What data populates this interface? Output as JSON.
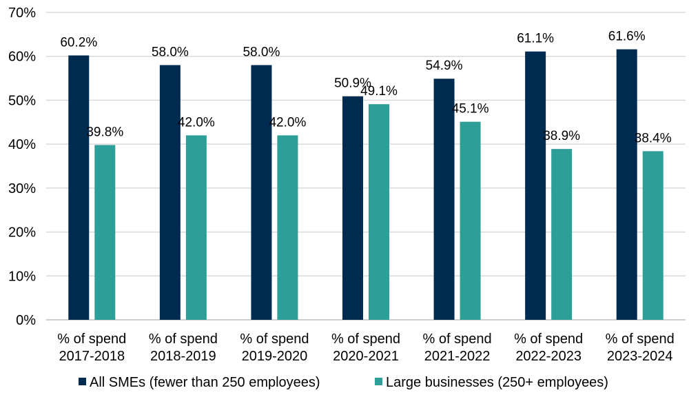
{
  "chart_data": {
    "type": "bar",
    "title": "",
    "xlabel": "",
    "ylabel": "",
    "ylim": [
      0,
      70
    ],
    "yticks": [
      0,
      10,
      20,
      30,
      40,
      50,
      60,
      70
    ],
    "ytick_labels": [
      "0%",
      "10%",
      "20%",
      "30%",
      "40%",
      "50%",
      "60%",
      "70%"
    ],
    "grid": true,
    "legend_position": "bottom",
    "categories": [
      [
        "% of spend",
        "2017-2018"
      ],
      [
        "% of spend",
        "2018-2019"
      ],
      [
        "% of spend",
        "2019-2020"
      ],
      [
        "% of spend",
        "2020-2021"
      ],
      [
        "% of spend",
        "2021-2022"
      ],
      [
        "% of spend",
        "2022-2023"
      ],
      [
        "% of spend",
        "2023-2024"
      ]
    ],
    "series": [
      {
        "name": "All SMEs (fewer than 250 employees)",
        "color": "#002b50",
        "values": [
          60.2,
          58.0,
          58.0,
          50.9,
          54.9,
          61.1,
          61.6
        ],
        "labels": [
          "60.2%",
          "58.0%",
          "58.0%",
          "50.9%",
          "54.9%",
          "61.1%",
          "61.6%"
        ]
      },
      {
        "name": "Large businesses (250+ employees)",
        "color": "#2e9e98",
        "values": [
          39.8,
          42.0,
          42.0,
          49.1,
          45.1,
          38.9,
          38.4
        ],
        "labels": [
          "39.8%",
          "42.0%",
          "42.0%",
          "49.1%",
          "45.1%",
          "38.9%",
          "38.4%"
        ]
      }
    ]
  }
}
